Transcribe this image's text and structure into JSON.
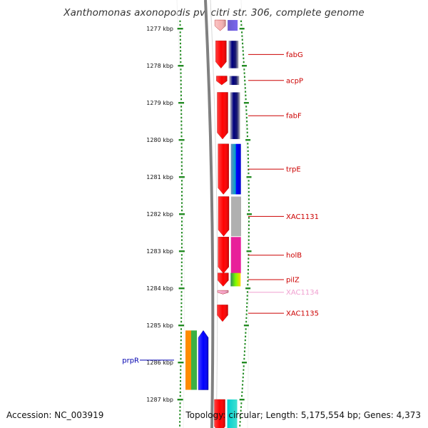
{
  "title": "Xanthomonas axonopodis pv. citri str. 306, complete genome",
  "footer": {
    "accession": "Accession: NC_003919",
    "topology": "Topology: circular; Length: 5,175,554 bp; Genes: 4,373"
  },
  "scale": {
    "unit": "kbp",
    "labels": [
      "1277 kbp",
      "1278 kbp",
      "1279 kbp",
      "1280 kbp",
      "1281 kbp",
      "1282 kbp",
      "1283 kbp",
      "1284 kbp",
      "1285 kbp",
      "1286 kbp",
      "1287 kbp"
    ]
  },
  "genes": [
    {
      "name": "",
      "start": 1276.77,
      "end": 1277.06,
      "strand": "+",
      "color": "#f7b3b3"
    },
    {
      "name": "fabG",
      "start": 1277.33,
      "end": 1278.07,
      "strand": "+",
      "color": "#ff0000"
    },
    {
      "name": "acpP",
      "start": 1278.28,
      "end": 1278.52,
      "strand": "+",
      "color": "#ff0000"
    },
    {
      "name": "fabF",
      "start": 1278.72,
      "end": 1279.98,
      "strand": "+",
      "color": "#ff0000"
    },
    {
      "name": "trpE",
      "start": 1280.11,
      "end": 1281.47,
      "strand": "+",
      "color": "#ff0000"
    },
    {
      "name": "XAC1131",
      "start": 1281.53,
      "end": 1282.6,
      "strand": "+",
      "color": "#ff0000"
    },
    {
      "name": "holB",
      "start": 1282.62,
      "end": 1283.6,
      "strand": "+",
      "color": "#ff0000"
    },
    {
      "name": "pilZ",
      "start": 1283.59,
      "end": 1283.95,
      "strand": "+",
      "color": "#ff0000"
    },
    {
      "name": "XAC1134",
      "start": 1284.06,
      "end": 1284.16,
      "strand": "+",
      "color": "#f5a3c7"
    },
    {
      "name": "XAC1135",
      "start": 1284.45,
      "end": 1284.9,
      "strand": "+",
      "color": "#ff0000"
    },
    {
      "name": "prpR",
      "start": 1285.14,
      "end": 1286.74,
      "strand": "-",
      "color": "#0000ff"
    },
    {
      "name": "",
      "start": 1287.0,
      "end": 1287.9,
      "strand": "+",
      "color": "#ff0000"
    }
  ],
  "colors": {
    "scale_ticks": "#228b22",
    "backbone": "#808080",
    "forward_label": "#cc0000",
    "reverse_label": "#0000b0"
  }
}
